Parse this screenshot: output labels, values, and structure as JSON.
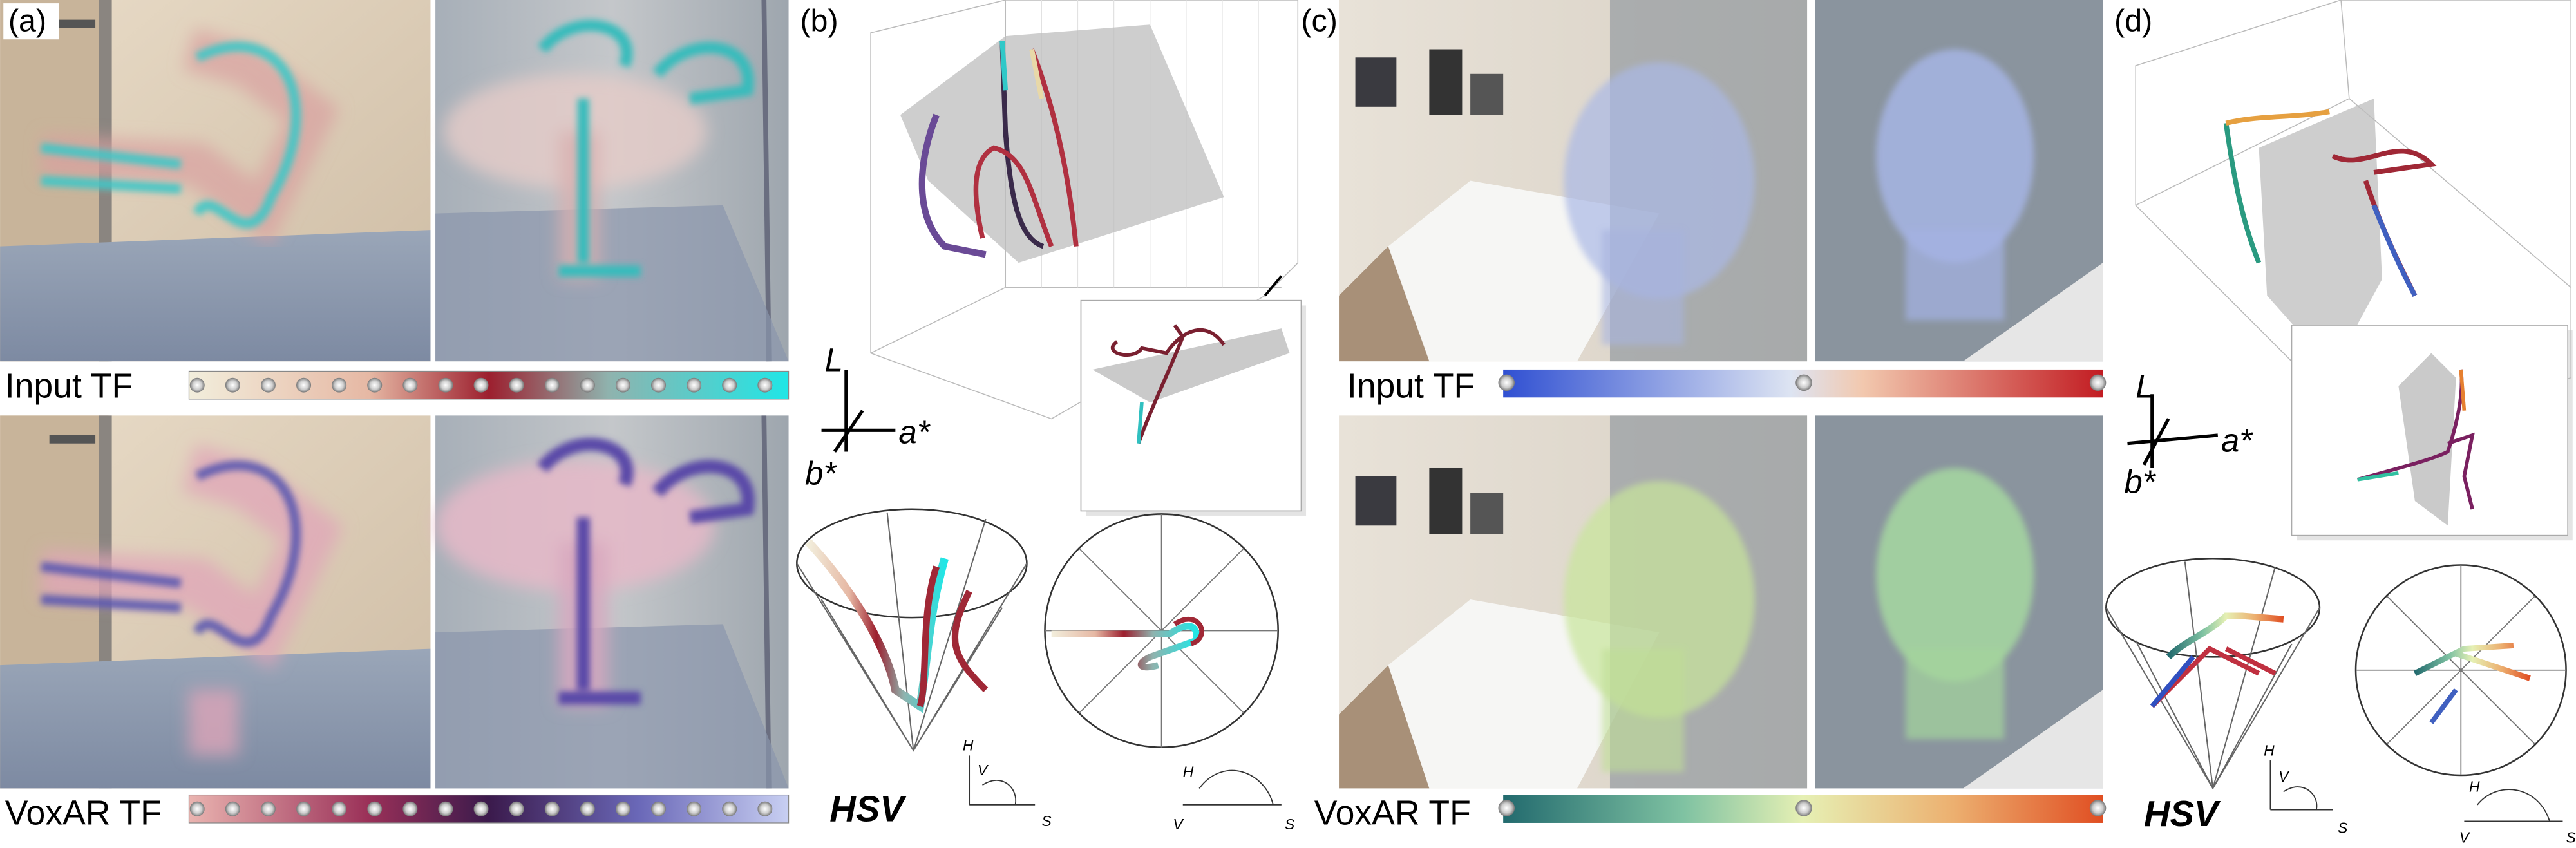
{
  "panels": {
    "a": {
      "label": "(a)",
      "input_tf": "Input TF",
      "voxar_tf": "VoxAR TF"
    },
    "b": {
      "label": "(b)",
      "lab_axes": [
        "L",
        "a*",
        "b*"
      ],
      "hsv": "HSV",
      "cone_axes": [
        "H",
        "V",
        "S"
      ],
      "polar_axes": [
        "H",
        "V",
        "S"
      ]
    },
    "c": {
      "label": "(c)",
      "input_tf": "Input TF",
      "voxar_tf": "VoxAR TF"
    },
    "d": {
      "label": "(d)",
      "lab_axes": [
        "L",
        "a*",
        "b*"
      ],
      "hsv": "HSV",
      "cone_axes": [
        "H",
        "V",
        "S"
      ],
      "polar_axes": [
        "H",
        "V",
        "S"
      ]
    }
  }
}
